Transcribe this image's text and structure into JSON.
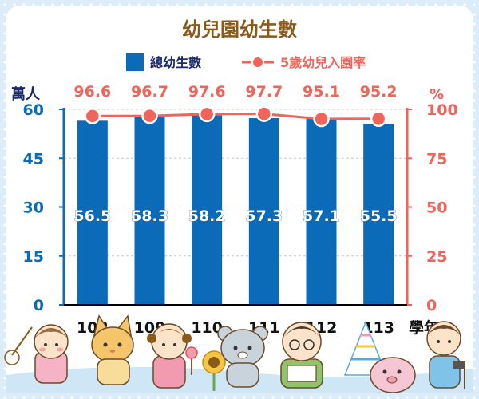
{
  "chart_data": {
    "type": "bar",
    "title": "幼兒園幼生數",
    "categories": [
      "108",
      "109",
      "110",
      "111",
      "112",
      "113"
    ],
    "x_unit": "學年",
    "series": [
      {
        "name": "總幼生數",
        "kind": "bar",
        "axis": "left",
        "color": "#0b6bb8",
        "values": [
          56.5,
          58.3,
          58.2,
          57.3,
          57.1,
          55.5
        ]
      },
      {
        "name": "5歲幼兒入園率",
        "kind": "line",
        "axis": "right",
        "color": "#f0645a",
        "values": [
          96.6,
          96.7,
          97.6,
          97.7,
          95.1,
          95.2
        ]
      }
    ],
    "y_left": {
      "unit": "萬人",
      "ylim": [
        0,
        60
      ],
      "ticks": [
        0,
        15,
        30,
        45,
        60
      ]
    },
    "y_right": {
      "unit": "%",
      "ylim": [
        0,
        100
      ],
      "ticks": [
        0,
        25,
        50,
        75,
        100
      ]
    },
    "grid": true,
    "legend_position": "top"
  }
}
